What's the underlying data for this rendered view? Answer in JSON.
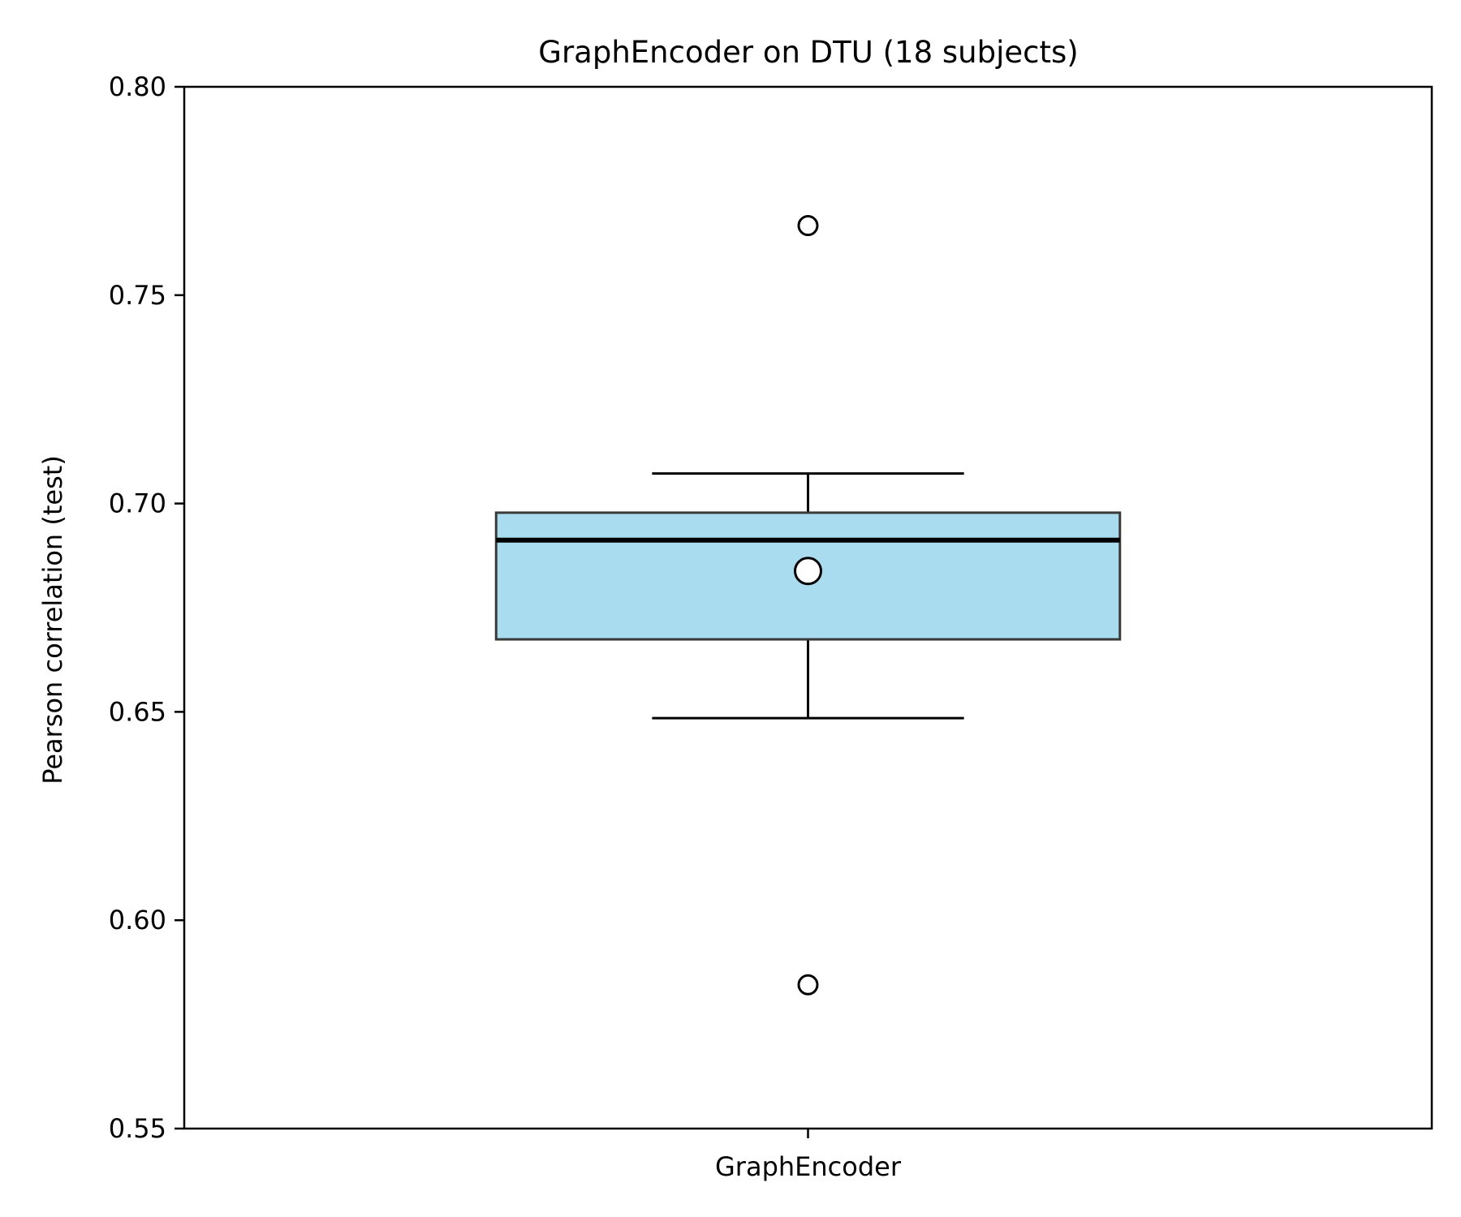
{
  "chart_data": {
    "type": "box",
    "title": "GraphEncoder on DTU (18 subjects)",
    "xlabel": "",
    "ylabel": "Pearson correlation (test)",
    "ylim": [
      0.55,
      0.8
    ],
    "yticks": [
      0.55,
      0.6,
      0.65,
      0.7,
      0.75,
      0.8
    ],
    "ytick_labels": [
      "0.55",
      "0.60",
      "0.65",
      "0.70",
      "0.75",
      "0.80"
    ],
    "categories": [
      "GraphEncoder"
    ],
    "grid": false,
    "legend": false,
    "box_color": "#a9dcee",
    "box_edge_color": "#3a3a3a",
    "median_color": "#000000",
    "series": [
      {
        "category": "GraphEncoder",
        "whisker_low": 0.6485,
        "q1": 0.6674,
        "median": 0.6912,
        "q3": 0.6978,
        "whisker_high": 0.7072,
        "mean": 0.6838,
        "outliers": [
          0.7667,
          0.5845
        ]
      }
    ]
  }
}
